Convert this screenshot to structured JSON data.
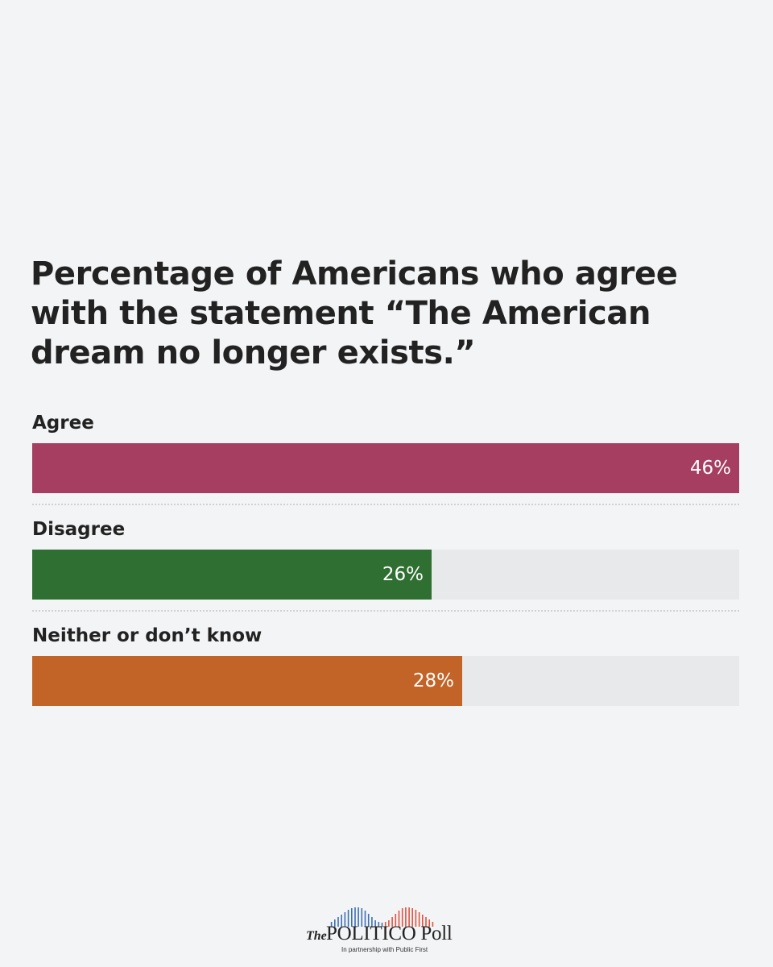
{
  "chart_data": {
    "type": "bar",
    "orientation": "horizontal",
    "title": "Percentage of Americans who agree with the statement “The American dream no longer exists.”",
    "xlim": [
      0,
      46
    ],
    "bars": [
      {
        "label": "Agree",
        "value": 46,
        "value_label": "46%",
        "color": "#a53e60"
      },
      {
        "label": "Disagree",
        "value": 26,
        "value_label": "26%",
        "color": "#2f6f31"
      },
      {
        "label": "Neither or don’t know",
        "value": 28,
        "value_label": "28%",
        "color": "#c26427"
      }
    ]
  },
  "logo": {
    "the": "The",
    "name": "POLITICO Poll",
    "subtitle": "In partnership with Public First"
  },
  "colors": {
    "background": "#f3f4f6",
    "track": "#e8e9eb",
    "logo_blue": "#3d6fb6",
    "logo_red": "#e0533f"
  }
}
